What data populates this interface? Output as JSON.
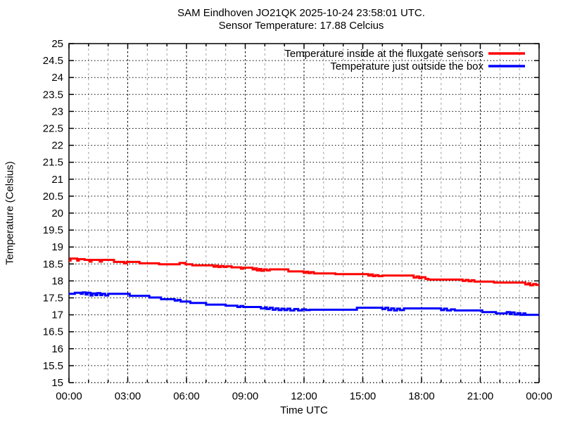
{
  "header": {
    "title_line1": "SAM Eindhoven JO21QK 2025-10-24 23:58:01 UTC.",
    "title_line2": "Sensor Temperature: 17.88 Celcius"
  },
  "chart_data": {
    "type": "line",
    "title": "SAM Eindhoven JO21QK 2025-10-24 23:58:01 UTC. Sensor Temperature: 17.88 Celcius",
    "xlabel": "Time UTC",
    "ylabel": "Temperature (Celsius)",
    "xlim_hours": [
      0,
      24
    ],
    "ylim": [
      15,
      25
    ],
    "y_tick_step": 0.5,
    "y_tick_labels": [
      "15",
      "15.5",
      "16",
      "16.5",
      "17",
      "17.5",
      "18",
      "18.5",
      "19",
      "19.5",
      "20",
      "20.5",
      "21",
      "21.5",
      "22",
      "22.5",
      "23",
      "23.5",
      "24",
      "24.5",
      "25"
    ],
    "x_major_tick_hours": [
      0,
      3,
      6,
      9,
      12,
      15,
      18,
      21,
      24
    ],
    "x_major_tick_labels": [
      "00:00",
      "03:00",
      "06:00",
      "09:00",
      "12:00",
      "15:00",
      "18:00",
      "21:00",
      "00:00"
    ],
    "x_minor_tick_interval_hours": 1,
    "grid": {
      "horizontal": "black dotted every 0.5",
      "vertical_major": "black dashed every 3h",
      "vertical_minor": "gray dashed every 1h"
    },
    "legend_position": "top-right inside plot",
    "colors": {
      "grid_minor": "#9e9e9e",
      "grid_major": "#000000",
      "axis": "#000000",
      "series_inside": "#ff0000",
      "series_outside": "#0000ff"
    },
    "series": [
      {
        "name": "Temperature inside at the fluxgate sensors",
        "color": "#ff0000",
        "points_time_temp": [
          [
            0,
            18.6
          ],
          [
            0.08,
            18.66
          ],
          [
            0.35,
            18.66
          ],
          [
            0.42,
            18.6
          ],
          [
            0.5,
            18.64
          ],
          [
            0.8,
            18.62
          ],
          [
            1.05,
            18.57
          ],
          [
            1.15,
            18.62
          ],
          [
            1.5,
            18.62
          ],
          [
            1.57,
            18.57
          ],
          [
            1.68,
            18.62
          ],
          [
            2.2,
            18.62
          ],
          [
            2.3,
            18.56
          ],
          [
            2.75,
            18.56
          ],
          [
            2.82,
            18.52
          ],
          [
            2.95,
            18.56
          ],
          [
            3.5,
            18.56
          ],
          [
            3.6,
            18.52
          ],
          [
            4.5,
            18.52
          ],
          [
            4.6,
            18.49
          ],
          [
            5.55,
            18.49
          ],
          [
            5.65,
            18.53
          ],
          [
            5.85,
            18.53
          ],
          [
            5.95,
            18.49
          ],
          [
            6.2,
            18.49
          ],
          [
            6.3,
            18.46
          ],
          [
            7.3,
            18.46
          ],
          [
            7.38,
            18.42
          ],
          [
            7.5,
            18.45
          ],
          [
            7.62,
            18.41
          ],
          [
            7.75,
            18.44
          ],
          [
            7.9,
            18.41
          ],
          [
            8.05,
            18.43
          ],
          [
            8.3,
            18.4
          ],
          [
            8.7,
            18.4
          ],
          [
            8.78,
            18.36
          ],
          [
            8.9,
            18.39
          ],
          [
            9.3,
            18.39
          ],
          [
            9.38,
            18.34
          ],
          [
            9.5,
            18.37
          ],
          [
            9.6,
            18.31
          ],
          [
            9.72,
            18.35
          ],
          [
            9.82,
            18.3
          ],
          [
            9.95,
            18.34
          ],
          [
            10.1,
            18.31
          ],
          [
            10.25,
            18.34
          ],
          [
            11.1,
            18.34
          ],
          [
            11.2,
            18.28
          ],
          [
            11.9,
            18.28
          ],
          [
            11.98,
            18.24
          ],
          [
            12.1,
            18.27
          ],
          [
            12.22,
            18.23
          ],
          [
            12.35,
            18.26
          ],
          [
            12.5,
            18.22
          ],
          [
            13.5,
            18.22
          ],
          [
            13.6,
            18.2
          ],
          [
            15.2,
            18.2
          ],
          [
            15.28,
            18.16
          ],
          [
            15.4,
            18.19
          ],
          [
            15.52,
            18.14
          ],
          [
            15.65,
            18.17
          ],
          [
            15.8,
            18.14
          ],
          [
            16,
            18.16
          ],
          [
            17.5,
            18.16
          ],
          [
            17.6,
            18.1
          ],
          [
            17.75,
            18.13
          ],
          [
            17.88,
            18.08
          ],
          [
            18,
            18.11
          ],
          [
            18.2,
            18.06
          ],
          [
            18.35,
            18.04
          ],
          [
            20,
            18.04
          ],
          [
            20.1,
            18.0
          ],
          [
            20.25,
            18.03
          ],
          [
            20.4,
            17.99
          ],
          [
            20.55,
            18.02
          ],
          [
            20.7,
            17.98
          ],
          [
            21.6,
            17.98
          ],
          [
            21.7,
            17.95
          ],
          [
            23.2,
            17.95
          ],
          [
            23.3,
            17.9
          ],
          [
            23.45,
            17.93
          ],
          [
            23.55,
            17.87
          ],
          [
            23.7,
            17.91
          ],
          [
            23.85,
            17.88
          ],
          [
            24,
            17.88
          ]
        ]
      },
      {
        "name": "Temperature just outside the box",
        "color": "#0000ff",
        "points_time_temp": [
          [
            0,
            17.62
          ],
          [
            0.3,
            17.65
          ],
          [
            0.6,
            17.62
          ],
          [
            0.7,
            17.66
          ],
          [
            0.85,
            17.6
          ],
          [
            0.95,
            17.65
          ],
          [
            1.1,
            17.57
          ],
          [
            1.2,
            17.63
          ],
          [
            1.35,
            17.58
          ],
          [
            1.45,
            17.64
          ],
          [
            1.6,
            17.58
          ],
          [
            1.7,
            17.62
          ],
          [
            1.85,
            17.57
          ],
          [
            2.0,
            17.62
          ],
          [
            3.0,
            17.62
          ],
          [
            3.1,
            17.56
          ],
          [
            4.0,
            17.56
          ],
          [
            4.1,
            17.51
          ],
          [
            4.6,
            17.51
          ],
          [
            4.7,
            17.46
          ],
          [
            5.3,
            17.46
          ],
          [
            5.4,
            17.42
          ],
          [
            5.55,
            17.44
          ],
          [
            5.7,
            17.39
          ],
          [
            6.1,
            17.39
          ],
          [
            6.2,
            17.35
          ],
          [
            6.9,
            17.35
          ],
          [
            7.0,
            17.3
          ],
          [
            7.9,
            17.3
          ],
          [
            8.0,
            17.27
          ],
          [
            8.5,
            17.27
          ],
          [
            8.6,
            17.23
          ],
          [
            8.75,
            17.26
          ],
          [
            8.9,
            17.23
          ],
          [
            9.7,
            17.23
          ],
          [
            9.8,
            17.19
          ],
          [
            10.0,
            17.22
          ],
          [
            10.1,
            17.17
          ],
          [
            10.25,
            17.21
          ],
          [
            10.4,
            17.15
          ],
          [
            10.55,
            17.19
          ],
          [
            10.7,
            17.14
          ],
          [
            10.85,
            17.18
          ],
          [
            11.0,
            17.14
          ],
          [
            11.15,
            17.18
          ],
          [
            11.3,
            17.13
          ],
          [
            11.5,
            17.17
          ],
          [
            11.7,
            17.13
          ],
          [
            11.9,
            17.16
          ],
          [
            12.1,
            17.14
          ],
          [
            12.3,
            17.15
          ],
          [
            14.6,
            17.15
          ],
          [
            14.7,
            17.21
          ],
          [
            15.9,
            17.21
          ],
          [
            16.0,
            17.17
          ],
          [
            16.15,
            17.21
          ],
          [
            16.3,
            17.14
          ],
          [
            16.45,
            17.19
          ],
          [
            16.6,
            17.13
          ],
          [
            16.75,
            17.18
          ],
          [
            16.9,
            17.14
          ],
          [
            17.1,
            17.19
          ],
          [
            18.9,
            17.19
          ],
          [
            19.0,
            17.14
          ],
          [
            19.15,
            17.18
          ],
          [
            19.3,
            17.13
          ],
          [
            19.5,
            17.16
          ],
          [
            19.7,
            17.13
          ],
          [
            21.0,
            17.13
          ],
          [
            21.1,
            17.08
          ],
          [
            21.7,
            17.08
          ],
          [
            21.8,
            17.04
          ],
          [
            22.3,
            17.04
          ],
          [
            22.35,
            17.08
          ],
          [
            22.5,
            17.02
          ],
          [
            22.6,
            17.07
          ],
          [
            22.75,
            17.01
          ],
          [
            22.9,
            17.05
          ],
          [
            23.05,
            17.0
          ],
          [
            23.2,
            17.04
          ],
          [
            23.3,
            17.0
          ],
          [
            24,
            17.0
          ]
        ]
      }
    ]
  }
}
